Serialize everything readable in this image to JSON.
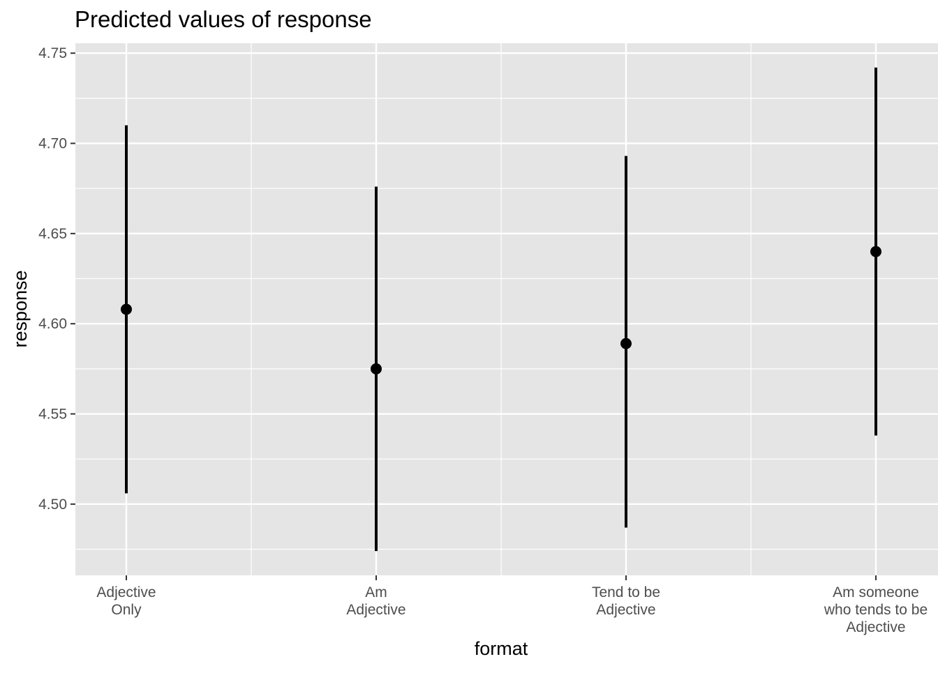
{
  "chart_data": {
    "type": "errorbar",
    "title": "Predicted values of response",
    "xlabel": "format",
    "ylabel": "response",
    "categories": [
      [
        "Adjective",
        "Only"
      ],
      [
        "Am",
        "Adjective"
      ],
      [
        "Tend to be",
        "Adjective"
      ],
      [
        "Am someone",
        "who tends to be",
        "Adjective"
      ]
    ],
    "values": [
      4.608,
      4.575,
      4.589,
      4.64
    ],
    "ci_low": [
      4.506,
      4.474,
      4.487,
      4.538
    ],
    "ci_high": [
      4.71,
      4.676,
      4.693,
      4.742
    ],
    "ylim": [
      4.4605,
      4.7555
    ],
    "yticks": [
      "4.50",
      "4.55",
      "4.60",
      "4.65",
      "4.70",
      "4.75"
    ],
    "ytick_values": [
      4.5,
      4.55,
      4.6,
      4.65,
      4.7,
      4.75
    ],
    "grid": true,
    "legend": "none",
    "colors": {
      "panel_background": "#e5e5e5",
      "grid_line": "#ffffff",
      "point": "#000000",
      "errorbar": "#000000",
      "tick_text": "#4d4d4d",
      "tick_mark": "#333333"
    }
  }
}
